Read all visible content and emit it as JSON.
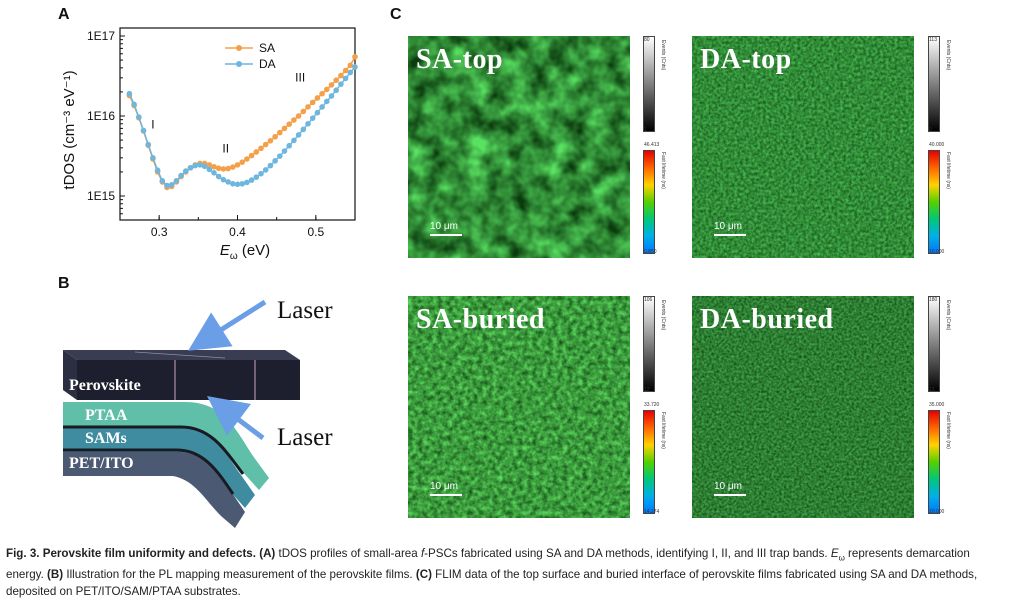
{
  "panels": {
    "A": "A",
    "B": "B",
    "C": "C"
  },
  "chart_data": {
    "type": "line",
    "xlabel": "Eω (eV)",
    "ylabel": "tDOS (cm⁻³ eV⁻¹)",
    "xlim": [
      0.25,
      0.55
    ],
    "ylim_log10": [
      14.7,
      17.1
    ],
    "log_y": true,
    "xticks": [
      "0.3",
      "0.4",
      "0.5"
    ],
    "yticks": [
      "1E15",
      "1E16",
      "1E17"
    ],
    "legend_position": "top-center",
    "annotations": [
      "I",
      "II",
      "III"
    ],
    "series": [
      {
        "name": "SA",
        "color": "#f4a04a",
        "x": [
          0.262,
          0.268,
          0.274,
          0.28,
          0.286,
          0.292,
          0.298,
          0.304,
          0.31,
          0.316,
          0.322,
          0.328,
          0.334,
          0.34,
          0.346,
          0.352,
          0.358,
          0.364,
          0.37,
          0.376,
          0.382,
          0.388,
          0.394,
          0.4,
          0.406,
          0.412,
          0.418,
          0.424,
          0.43,
          0.436,
          0.442,
          0.448,
          0.454,
          0.46,
          0.466,
          0.472,
          0.478,
          0.484,
          0.49,
          0.496,
          0.502,
          0.508,
          0.514,
          0.52,
          0.526,
          0.532,
          0.538,
          0.544,
          0.55
        ],
        "y": [
          1.8e+16,
          1.35e+16,
          9500000000000000.0,
          6500000000000000.0,
          4300000000000000.0,
          2900000000000000.0,
          2000000000000000.0,
          1500000000000000.0,
          1280000000000000.0,
          1320000000000000.0,
          1500000000000000.0,
          1750000000000000.0,
          2000000000000000.0,
          2250000000000000.0,
          2450000000000000.0,
          2550000000000000.0,
          2550000000000000.0,
          2450000000000000.0,
          2320000000000000.0,
          2220000000000000.0,
          2180000000000000.0,
          2200000000000000.0,
          2300000000000000.0,
          2450000000000000.0,
          2650000000000000.0,
          2900000000000000.0,
          3200000000000000.0,
          3550000000000000.0,
          3950000000000000.0,
          4400000000000000.0,
          4900000000000000.0,
          5500000000000000.0,
          6200000000000000.0,
          7000000000000000.0,
          7900000000000000.0,
          8900000000000000.0,
          1e+16,
          1.14e+16,
          1.3e+16,
          1.48e+16,
          1.68e+16,
          1.9e+16,
          2.15e+16,
          2.45e+16,
          2.8e+16,
          3.2e+16,
          3.7e+16,
          4.3e+16,
          5.5e+16
        ]
      },
      {
        "name": "DA",
        "color": "#6fb6de",
        "x": [
          0.262,
          0.268,
          0.274,
          0.28,
          0.286,
          0.292,
          0.298,
          0.304,
          0.31,
          0.316,
          0.322,
          0.328,
          0.334,
          0.34,
          0.346,
          0.352,
          0.358,
          0.364,
          0.37,
          0.376,
          0.382,
          0.388,
          0.394,
          0.4,
          0.406,
          0.412,
          0.418,
          0.424,
          0.43,
          0.436,
          0.442,
          0.448,
          0.454,
          0.46,
          0.466,
          0.472,
          0.478,
          0.484,
          0.49,
          0.496,
          0.502,
          0.508,
          0.514,
          0.52,
          0.526,
          0.532,
          0.538,
          0.544,
          0.55
        ],
        "y": [
          1.9e+16,
          1.4e+16,
          9700000000000000.0,
          6600000000000000.0,
          4400000000000000.0,
          3000000000000000.0,
          2100000000000000.0,
          1550000000000000.0,
          1350000000000000.0,
          1380000000000000.0,
          1550000000000000.0,
          1800000000000000.0,
          2050000000000000.0,
          2250000000000000.0,
          2400000000000000.0,
          2450000000000000.0,
          2350000000000000.0,
          2150000000000000.0,
          1950000000000000.0,
          1750000000000000.0,
          1600000000000000.0,
          1500000000000000.0,
          1420000000000000.0,
          1400000000000000.0,
          1420000000000000.0,
          1480000000000000.0,
          1580000000000000.0,
          1720000000000000.0,
          1900000000000000.0,
          2120000000000000.0,
          2400000000000000.0,
          2750000000000000.0,
          3150000000000000.0,
          3650000000000000.0,
          4250000000000000.0,
          4950000000000000.0,
          5800000000000000.0,
          6800000000000000.0,
          8000000000000000.0,
          9400000000000000.0,
          1.1e+16,
          1.3e+16,
          1.52e+16,
          1.78e+16,
          2.1e+16,
          2.5e+16,
          2.95e+16,
          3.5e+16,
          4.1e+16
        ]
      }
    ]
  },
  "schematic": {
    "laser_top": "Laser",
    "laser_bottom": "Laser",
    "layers": [
      "Perovskite",
      "PTAA",
      "SAMs",
      "PET/ITO"
    ],
    "colors": {
      "perovskite": "#1d1f2e",
      "ptaa": "#5fbfa8",
      "sams": "#3f8ca0",
      "pet_ito": "#4b5a72",
      "arrow": "#6a9ee6"
    }
  },
  "flim": [
    {
      "label": "SA-top",
      "scale": "10 μm",
      "events_max": "80",
      "events_min": "1",
      "lt_max": "46.413",
      "lt_min": "0.850",
      "events_title": "Events (Cnts)",
      "lt_title": "Fast lifetime (ns)"
    },
    {
      "label": "DA-top",
      "scale": "10 μm",
      "events_max": "113",
      "events_min": "0",
      "lt_max": "40.000",
      "lt_min": "10.000",
      "events_title": "Events (Cnts)",
      "lt_title": "Fast lifetime (ns)"
    },
    {
      "label": "SA-buried",
      "scale": "10 μm",
      "events_max": "106",
      "events_min": "12",
      "lt_max": "33.720",
      "lt_min": "14.274",
      "events_title": "Events (Cnts)",
      "lt_title": "Fast lifetime (ns)"
    },
    {
      "label": "DA-buried",
      "scale": "10 μm",
      "events_max": "180",
      "events_min": "13",
      "lt_max": "35.000",
      "lt_min": "10.000",
      "events_title": "Events (Cnts)",
      "lt_title": "Fast lifetime (ns)"
    }
  ],
  "caption": {
    "title": "Fig. 3. Perovskite film uniformity and defects.",
    "a_label": "(A)",
    "a_text": " tDOS profiles of small-area ",
    "f_italic": "f",
    "a_text2": "-PSCs fabricated using SA and DA methods, identifying I, II, and III trap bands. ",
    "e_omega": "E",
    "omega_sub": "ω",
    "a_text3": " represents demarcation energy. ",
    "b_label": "(B)",
    "b_text": " Illustration for the PL mapping measurement of the perovskite films. ",
    "c_label": "(C)",
    "c_text": " FLIM data of the top surface and buried interface of perovskite films fabricated using SA and DA methods, deposited on PET/ITO/SAM/PTAA substrates."
  }
}
